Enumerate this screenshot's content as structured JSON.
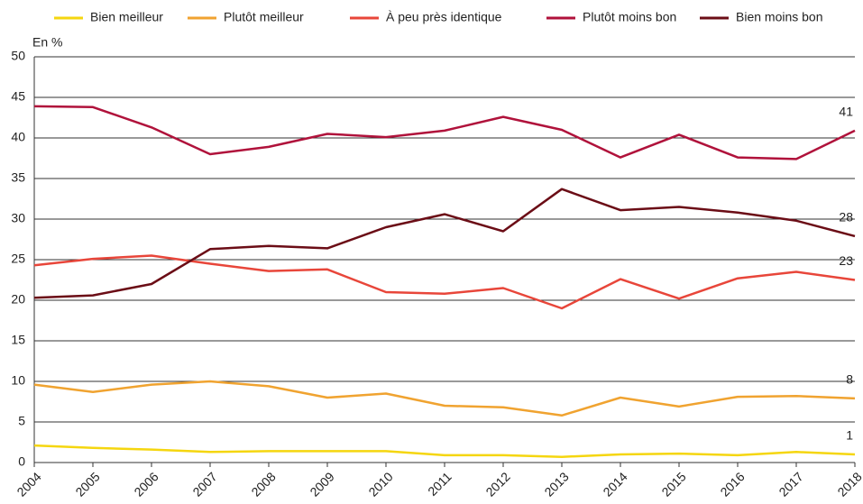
{
  "chart_data": {
    "type": "line",
    "y_label": "En %",
    "categories": [
      "2004",
      "2005",
      "2006",
      "2007",
      "2008",
      "2009",
      "2010",
      "2011",
      "2012",
      "2013",
      "2014",
      "2015",
      "2016",
      "2017",
      "2018"
    ],
    "ylim": [
      0,
      50
    ],
    "yticks": [
      0,
      5,
      10,
      15,
      20,
      25,
      30,
      35,
      40,
      45,
      50
    ],
    "grid": true,
    "legend": "top",
    "series": [
      {
        "name": "Bien meilleur",
        "color": "#f5d60f",
        "values": [
          2.1,
          1.8,
          1.6,
          1.3,
          1.4,
          1.4,
          1.4,
          0.9,
          0.9,
          0.7,
          1.0,
          1.1,
          0.9,
          1.3,
          1.0
        ],
        "value_labels": [
          null,
          null,
          null,
          null,
          null,
          null,
          null,
          null,
          null,
          null,
          null,
          null,
          null,
          null,
          "1"
        ]
      },
      {
        "name": "Plutôt meilleur",
        "color": "#f0a330",
        "values": [
          9.6,
          8.7,
          9.6,
          10.0,
          9.4,
          8.0,
          8.5,
          7.0,
          6.8,
          5.8,
          8.0,
          6.9,
          8.1,
          8.2,
          7.9
        ],
        "value_labels": [
          null,
          null,
          null,
          null,
          null,
          null,
          null,
          null,
          null,
          null,
          null,
          null,
          null,
          null,
          "8"
        ]
      },
      {
        "name": "À peu près identique",
        "color": "#e8463a",
        "values": [
          24.3,
          25.1,
          25.5,
          24.5,
          23.6,
          23.8,
          21.0,
          20.8,
          21.5,
          19.0,
          22.6,
          20.2,
          22.7,
          23.5,
          22.5
        ],
        "value_labels": [
          null,
          null,
          null,
          null,
          null,
          null,
          null,
          null,
          null,
          null,
          null,
          null,
          null,
          null,
          "23"
        ]
      },
      {
        "name": "Plutôt moins bon",
        "color": "#b0123b",
        "values": [
          43.9,
          43.8,
          41.3,
          38.0,
          38.9,
          40.5,
          40.1,
          40.9,
          42.6,
          41.0,
          37.6,
          40.4,
          37.6,
          37.4,
          40.9
        ],
        "value_labels": [
          null,
          null,
          null,
          null,
          null,
          null,
          null,
          null,
          null,
          null,
          null,
          null,
          null,
          null,
          "41"
        ]
      },
      {
        "name": "Bien moins bon",
        "color": "#6b0d16",
        "values": [
          20.3,
          20.6,
          22.0,
          26.3,
          26.7,
          26.4,
          29.0,
          30.6,
          28.5,
          33.7,
          31.1,
          31.5,
          30.8,
          29.8,
          27.9
        ],
        "value_labels": [
          null,
          null,
          null,
          null,
          null,
          null,
          null,
          null,
          null,
          null,
          null,
          null,
          null,
          null,
          "28"
        ]
      }
    ]
  }
}
